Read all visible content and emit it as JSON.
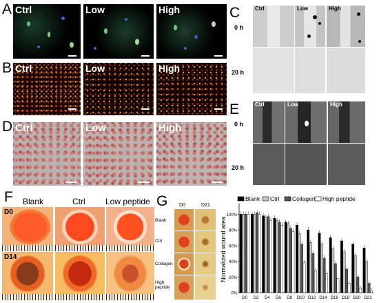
{
  "panels": {
    "A": "A",
    "B": "B",
    "C": "C",
    "D": "D",
    "E": "E",
    "F": "F",
    "G": "G"
  },
  "groups3": [
    "Ctrl",
    "Low",
    "High"
  ],
  "times": [
    "0 h",
    "20 h"
  ],
  "panelF": {
    "headers": [
      "Blank",
      "Ctrl",
      "Low peptide"
    ],
    "days": [
      "D0",
      "D14"
    ]
  },
  "panelG": {
    "days": [
      "D0",
      "D21"
    ],
    "row_labels": [
      "Blank",
      "Ctrl",
      "Collagen",
      "High peptide"
    ]
  },
  "colors": {
    "blank": "#000000",
    "ctrl": "#c8c8c8",
    "collagen": "#555555",
    "high": "#ffffff"
  },
  "chart_data": {
    "type": "bar",
    "ylabel": "Normalized wound area",
    "categories": [
      "D0",
      "D2",
      "D4",
      "D6",
      "D8",
      "D10",
      "D12",
      "D14",
      "D16",
      "D18",
      "D20",
      "D21"
    ],
    "yticks": [
      "0%",
      "20%",
      "40%",
      "60%",
      "80%",
      "100%"
    ],
    "ylim": [
      0,
      110
    ],
    "series": [
      {
        "name": "Blank",
        "color": "#000000",
        "values": [
          100,
          100,
          98,
          95,
          90,
          86,
          80,
          76,
          70,
          66,
          62,
          57
        ]
      },
      {
        "name": "Ctrl",
        "color": "#c8c8c8",
        "values": [
          100,
          100,
          96,
          92,
          88,
          75,
          64,
          62,
          56,
          52,
          47,
          40
        ]
      },
      {
        "name": "Collagen",
        "color": "#555555",
        "values": [
          100,
          102,
          97,
          90,
          82,
          62,
          50,
          44,
          37,
          30,
          20,
          12
        ]
      },
      {
        "name": "High peptide",
        "color": "#ffffff",
        "values": [
          100,
          100,
          92,
          86,
          78,
          38,
          28,
          24,
          18,
          12,
          6,
          2
        ]
      }
    ],
    "legend_position": "top"
  }
}
